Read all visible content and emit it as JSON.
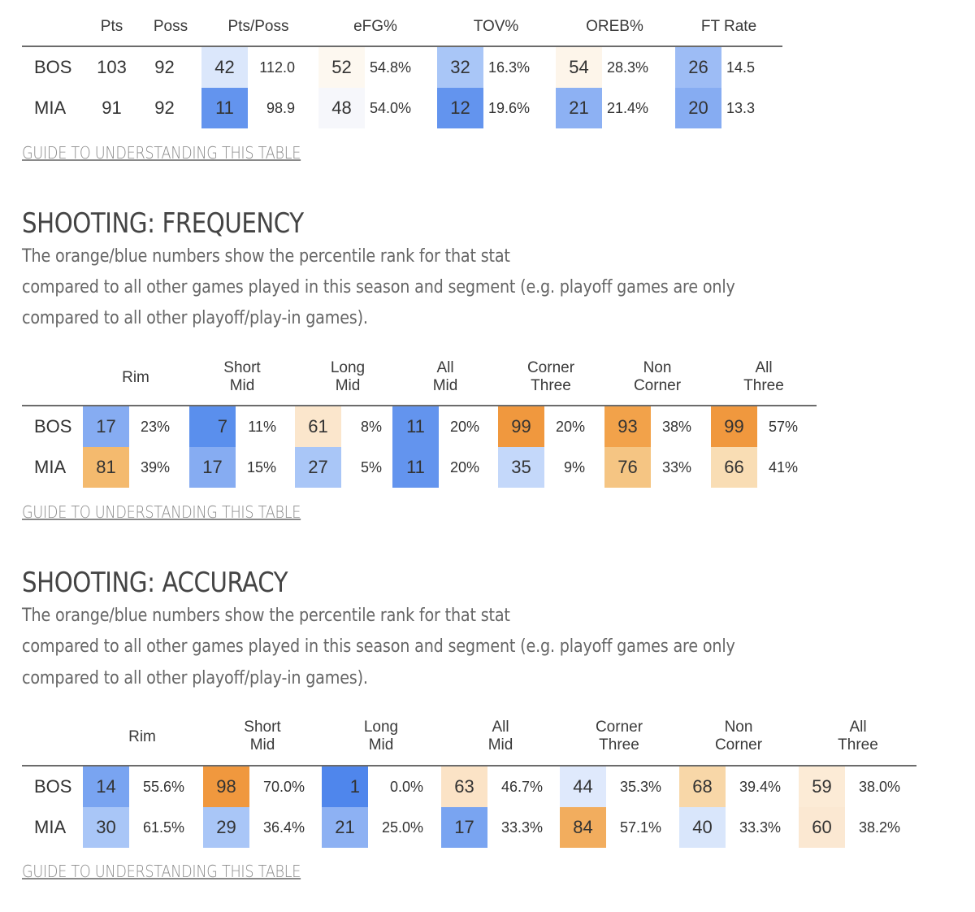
{
  "colors": {
    "orange_strong": "#f0983e",
    "orange_mid": "#f4ba6e",
    "orange_light": "#f8d7a8",
    "orange_pale": "#fbe6cc",
    "orange_faint": "#fdf5ea",
    "neutral_faint": "#f6f7fb",
    "blue_pale": "#dbe7fb",
    "blue_light": "#a9c6f7",
    "blue_mid": "#86acf2",
    "blue_strong": "#6394ee",
    "blue_deep": "#4f86ec"
  },
  "four_factors": {
    "headers": {
      "pts": "Pts",
      "poss": "Poss",
      "pts_poss": "Pts/Poss",
      "efg": "eFG%",
      "tov": "TOV%",
      "oreb": "OREB%",
      "ft": "FT Rate"
    },
    "rows": [
      {
        "team": "BOS",
        "pts": "103",
        "poss": "92",
        "pts_poss": {
          "rank": "42",
          "value": "112.0",
          "color": "#dbe7fb"
        },
        "efg": {
          "rank": "52",
          "value": "54.8%",
          "color": "#fdf8f0"
        },
        "tov": {
          "rank": "32",
          "value": "16.3%",
          "color": "#a9c6f7"
        },
        "oreb": {
          "rank": "54",
          "value": "28.3%",
          "color": "#fdf5ea"
        },
        "ft": {
          "rank": "26",
          "value": "14.5",
          "color": "#9dbcf5"
        }
      },
      {
        "team": "MIA",
        "pts": "91",
        "poss": "92",
        "pts_poss": {
          "rank": "11",
          "value": "98.9",
          "color": "#6394ee"
        },
        "efg": {
          "rank": "48",
          "value": "54.0%",
          "color": "#f6f7fb"
        },
        "tov": {
          "rank": "12",
          "value": "19.6%",
          "color": "#6394ee"
        },
        "oreb": {
          "rank": "21",
          "value": "21.4%",
          "color": "#8db1f3"
        },
        "ft": {
          "rank": "20",
          "value": "13.3",
          "color": "#86acf2"
        }
      }
    ],
    "guide": "GUIDE TO UNDERSTANDING THIS TABLE"
  },
  "frequency": {
    "title": "SHOOTING: FREQUENCY",
    "para": [
      "The orange/blue numbers show the percentile rank for that stat",
      "compared to all other games played in this season and segment (e.g. playoff games are only",
      "compared to all other playoff/play-in games)."
    ],
    "headers": [
      {
        "l1": "Rim",
        "l2": ""
      },
      {
        "l1": "Short",
        "l2": "Mid"
      },
      {
        "l1": "Long",
        "l2": "Mid"
      },
      {
        "l1": "All",
        "l2": "Mid"
      },
      {
        "l1": "Corner",
        "l2": "Three"
      },
      {
        "l1": "Non",
        "l2": "Corner"
      },
      {
        "l1": "All",
        "l2": "Three"
      }
    ],
    "rows": [
      {
        "team": "BOS",
        "cells": [
          {
            "rank": "17",
            "value": "23%",
            "color": "#86acf2"
          },
          {
            "rank": "7",
            "value": "11%",
            "color": "#5a8fed"
          },
          {
            "rank": "61",
            "value": "8%",
            "color": "#fbe6cc"
          },
          {
            "rank": "11",
            "value": "20%",
            "color": "#6394ee"
          },
          {
            "rank": "99",
            "value": "20%",
            "color": "#f0983e"
          },
          {
            "rank": "93",
            "value": "38%",
            "color": "#f2a24a"
          },
          {
            "rank": "99",
            "value": "57%",
            "color": "#f0983e"
          }
        ]
      },
      {
        "team": "MIA",
        "cells": [
          {
            "rank": "81",
            "value": "39%",
            "color": "#f4ba6e"
          },
          {
            "rank": "17",
            "value": "15%",
            "color": "#86acf2"
          },
          {
            "rank": "27",
            "value": "5%",
            "color": "#a9c6f7"
          },
          {
            "rank": "11",
            "value": "20%",
            "color": "#6394ee"
          },
          {
            "rank": "35",
            "value": "9%",
            "color": "#c4d8fa"
          },
          {
            "rank": "76",
            "value": "33%",
            "color": "#f5c583"
          },
          {
            "rank": "66",
            "value": "41%",
            "color": "#f9ddb4"
          }
        ]
      }
    ],
    "guide": "GUIDE TO UNDERSTANDING THIS TABLE"
  },
  "accuracy": {
    "title": "SHOOTING: ACCURACY",
    "para": [
      "The orange/blue numbers show the percentile rank for that stat",
      "compared to all other games played in this season and segment (e.g. playoff games are only",
      "compared to all other playoff/play-in games)."
    ],
    "headers": [
      {
        "l1": "Rim",
        "l2": ""
      },
      {
        "l1": "Short",
        "l2": "Mid"
      },
      {
        "l1": "Long",
        "l2": "Mid"
      },
      {
        "l1": "All",
        "l2": "Mid"
      },
      {
        "l1": "Corner",
        "l2": "Three"
      },
      {
        "l1": "Non",
        "l2": "Corner"
      },
      {
        "l1": "All",
        "l2": "Three"
      }
    ],
    "rows": [
      {
        "team": "BOS",
        "cells": [
          {
            "rank": "14",
            "value": "55.6%",
            "color": "#79a4f1"
          },
          {
            "rank": "98",
            "value": "70.0%",
            "color": "#f0983e"
          },
          {
            "rank": "1",
            "value": "0.0%",
            "color": "#4f86ec"
          },
          {
            "rank": "63",
            "value": "46.7%",
            "color": "#fbe3c6"
          },
          {
            "rank": "44",
            "value": "35.3%",
            "color": "#dfe9fc"
          },
          {
            "rank": "68",
            "value": "39.4%",
            "color": "#f8d7a8"
          },
          {
            "rank": "59",
            "value": "38.0%",
            "color": "#fcebd6"
          }
        ]
      },
      {
        "team": "MIA",
        "cells": [
          {
            "rank": "30",
            "value": "61.5%",
            "color": "#a9c6f7"
          },
          {
            "rank": "29",
            "value": "36.4%",
            "color": "#a9c6f7"
          },
          {
            "rank": "21",
            "value": "25.0%",
            "color": "#8db1f3"
          },
          {
            "rank": "17",
            "value": "33.3%",
            "color": "#79a4f1"
          },
          {
            "rank": "84",
            "value": "57.1%",
            "color": "#f2ad5e"
          },
          {
            "rank": "40",
            "value": "33.3%",
            "color": "#d9e6fb"
          },
          {
            "rank": "60",
            "value": "38.2%",
            "color": "#fbe8d2"
          }
        ]
      }
    ],
    "guide": "GUIDE TO UNDERSTANDING THIS TABLE"
  }
}
